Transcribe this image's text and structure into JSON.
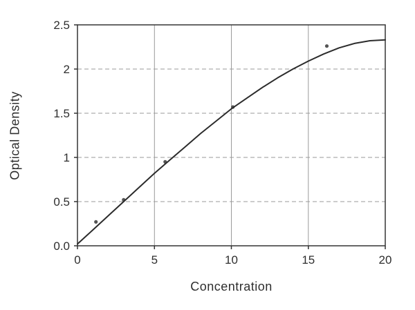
{
  "chart_data": {
    "type": "scatter",
    "title": "",
    "xlabel": "Concentration",
    "ylabel": "Optical Density",
    "xlim": [
      0,
      20
    ],
    "ylim": [
      0,
      2.5
    ],
    "legend": "none",
    "grid": {
      "x_values": [
        5,
        10,
        15
      ],
      "x_style": "solid",
      "y_values": [
        0.5,
        1,
        1.5,
        2
      ],
      "y_style": "dashed"
    },
    "xticks": {
      "values": [
        0,
        5,
        10,
        15,
        20
      ],
      "labels": [
        "0",
        "5",
        "10",
        "15",
        "20"
      ]
    },
    "yticks": {
      "values": [
        0,
        0.5,
        1,
        1.5,
        2,
        2.5
      ],
      "labels": [
        "0.0",
        "0.5",
        "1",
        "1.5",
        "2",
        "2.5"
      ]
    },
    "series": [
      {
        "name": "measured-points",
        "style": "points",
        "points": [
          [
            1.2,
            0.27
          ],
          [
            3.0,
            0.52
          ],
          [
            5.7,
            0.95
          ],
          [
            10.1,
            1.57
          ],
          [
            16.2,
            2.26
          ]
        ]
      },
      {
        "name": "fitted-curve",
        "style": "line",
        "points": [
          [
            0,
            0.02
          ],
          [
            1,
            0.18
          ],
          [
            2,
            0.34
          ],
          [
            3,
            0.5
          ],
          [
            4,
            0.66
          ],
          [
            5,
            0.82
          ],
          [
            6,
            0.97
          ],
          [
            7,
            1.12
          ],
          [
            8,
            1.27
          ],
          [
            9,
            1.41
          ],
          [
            10,
            1.55
          ],
          [
            11,
            1.67
          ],
          [
            12,
            1.79
          ],
          [
            13,
            1.9
          ],
          [
            14,
            2.0
          ],
          [
            15,
            2.09
          ],
          [
            16,
            2.17
          ],
          [
            17,
            2.24
          ],
          [
            18,
            2.29
          ],
          [
            19,
            2.32
          ],
          [
            20,
            2.33
          ]
        ]
      }
    ],
    "colors": {
      "background": "#ffffff",
      "frame": "#333333",
      "grid": "#9a9a9a",
      "curve": "#2b2b2b",
      "point": "#555555",
      "text": "#2e2e2e"
    }
  }
}
